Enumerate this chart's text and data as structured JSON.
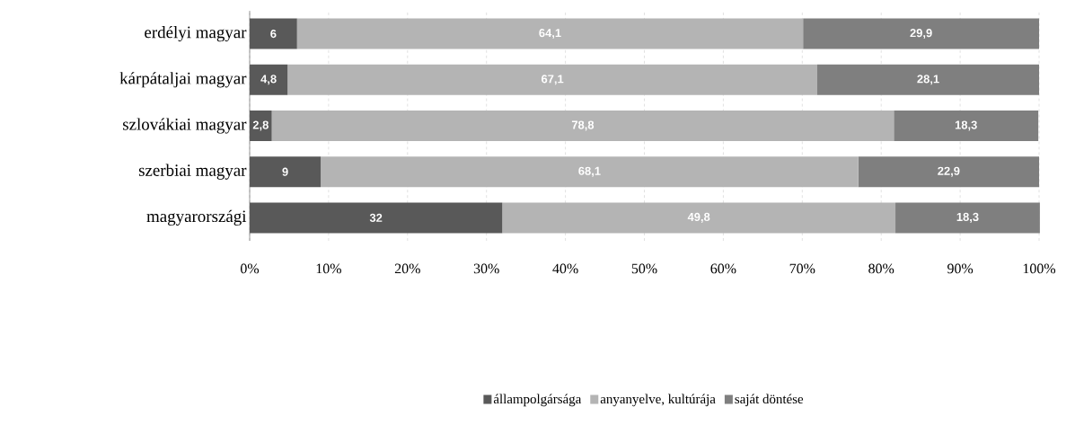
{
  "chart_data": {
    "type": "bar",
    "orientation": "horizontal",
    "stacked": true,
    "categories": [
      "erdélyi magyar",
      "kárpátaljai magyar",
      "szlovákiai magyar",
      "szerbiai magyar",
      "magyarországi"
    ],
    "series": [
      {
        "name": "állampolgársága",
        "color": "#595959",
        "values": [
          6,
          4.8,
          2.8,
          9,
          32
        ],
        "value_labels": [
          "6",
          "4,8",
          "2,8",
          "9",
          "32"
        ]
      },
      {
        "name": "anyanyelve, kultúrája",
        "color": "#b4b4b4",
        "values": [
          64.1,
          67.1,
          78.8,
          68.1,
          49.8
        ],
        "value_labels": [
          "64,1",
          "67,1",
          "78,8",
          "68,1",
          "49,8"
        ]
      },
      {
        "name": "saját döntése",
        "color": "#7f7f7f",
        "values": [
          29.9,
          28.1,
          18.3,
          22.9,
          18.3
        ],
        "value_labels": [
          "29,9",
          "28,1",
          "18,3",
          "22,9",
          "18,3"
        ]
      }
    ],
    "xlim": [
      0,
      100
    ],
    "xticks": [
      {
        "value": 0,
        "label": "0%"
      },
      {
        "value": 10,
        "label": "10%"
      },
      {
        "value": 20,
        "label": "20%"
      },
      {
        "value": 30,
        "label": "30%"
      },
      {
        "value": 40,
        "label": "40%"
      },
      {
        "value": 50,
        "label": "50%"
      },
      {
        "value": 60,
        "label": "60%"
      },
      {
        "value": 70,
        "label": "70%"
      },
      {
        "value": 80,
        "label": "80%"
      },
      {
        "value": 90,
        "label": "90%"
      },
      {
        "value": 100,
        "label": "100%"
      }
    ],
    "grid": "x",
    "legend": "bottom"
  }
}
